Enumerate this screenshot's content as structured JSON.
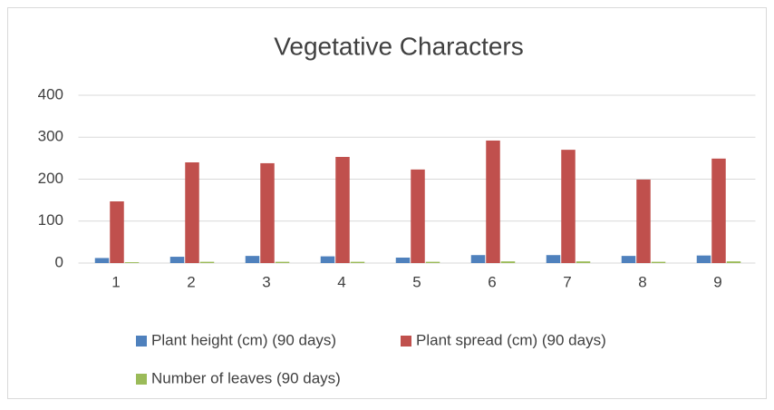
{
  "chart_data": {
    "type": "bar",
    "title": "Vegetative Characters",
    "categories": [
      "1",
      "2",
      "3",
      "4",
      "5",
      "6",
      "7",
      "8",
      "9"
    ],
    "series": [
      {
        "name": "Plant height (cm) (90 days)",
        "color": "#4f81bd",
        "values": [
          12,
          15,
          17,
          16,
          13,
          19,
          19,
          17,
          18
        ]
      },
      {
        "name": "Plant spread (cm) (90 days)",
        "color": "#c0504d",
        "values": [
          147,
          240,
          238,
          253,
          223,
          292,
          270,
          199,
          249
        ]
      },
      {
        "name": "Number of leaves (90 days)",
        "color": "#9bbb59",
        "values": [
          2,
          3,
          3,
          3,
          3,
          4,
          4,
          3,
          4
        ]
      }
    ],
    "ylim": [
      0,
      400
    ],
    "yticks": [
      0,
      100,
      200,
      300,
      400
    ],
    "grid": true,
    "legend": "bottom"
  }
}
